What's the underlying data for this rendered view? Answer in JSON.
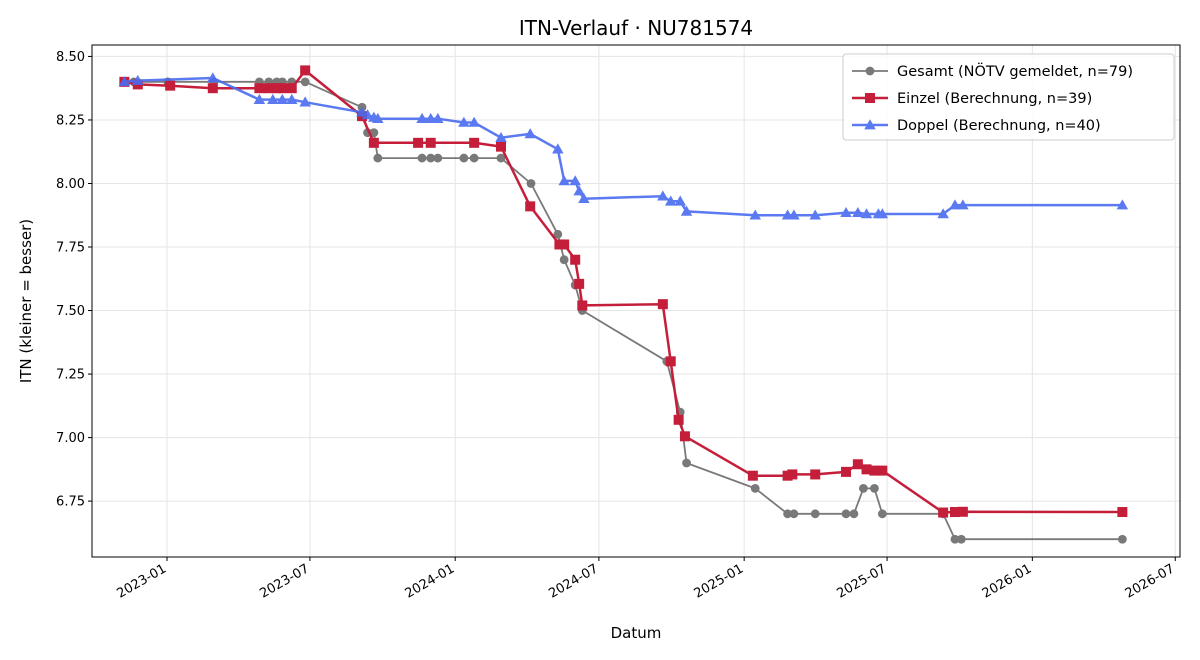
{
  "chart_data": {
    "type": "line",
    "title": "ITN-Verlauf · NU781574",
    "xlabel": "Datum",
    "ylabel": "ITN  (kleiner = besser)",
    "x_range": [
      "2022-09-28",
      "2026-07-07"
    ],
    "ylim": [
      6.53,
      8.545
    ],
    "x_ticks": [
      {
        "date": "2023-01-01",
        "label": "2023-01"
      },
      {
        "date": "2023-07-01",
        "label": "2023-07"
      },
      {
        "date": "2024-01-01",
        "label": "2024-01"
      },
      {
        "date": "2024-07-01",
        "label": "2024-07"
      },
      {
        "date": "2025-01-01",
        "label": "2025-01"
      },
      {
        "date": "2025-07-01",
        "label": "2025-07"
      },
      {
        "date": "2026-01-01",
        "label": "2026-01"
      },
      {
        "date": "2026-07-01",
        "label": "2026-07"
      }
    ],
    "y_ticks": [
      {
        "value": 6.75,
        "label": "6.75"
      },
      {
        "value": 7.0,
        "label": "7.00"
      },
      {
        "value": 7.25,
        "label": "7.25"
      },
      {
        "value": 7.5,
        "label": "7.50"
      },
      {
        "value": 7.75,
        "label": "7.75"
      },
      {
        "value": 8.0,
        "label": "8.00"
      },
      {
        "value": 8.25,
        "label": "8.25"
      },
      {
        "value": 8.5,
        "label": "8.50"
      }
    ],
    "grid": true,
    "legend_position": "top-right",
    "series": [
      {
        "name": "Gesamt (NÖTV gemeldet, n=79)",
        "color": "#4d4d4d",
        "marker": "circle",
        "points": [
          [
            "2022-11-08",
            8.4
          ],
          [
            "2022-11-20",
            8.4
          ],
          [
            "2023-01-02",
            8.4
          ],
          [
            "2023-03-01",
            8.4
          ],
          [
            "2023-04-28",
            8.4
          ],
          [
            "2023-05-10",
            8.4
          ],
          [
            "2023-05-20",
            8.4
          ],
          [
            "2023-05-27",
            8.4
          ],
          [
            "2023-06-08",
            8.4
          ],
          [
            "2023-06-25",
            8.4
          ],
          [
            "2023-09-05",
            8.3
          ],
          [
            "2023-09-12",
            8.2
          ],
          [
            "2023-09-20",
            8.2
          ],
          [
            "2023-09-25",
            8.1
          ],
          [
            "2023-11-20",
            8.1
          ],
          [
            "2023-12-01",
            8.1
          ],
          [
            "2023-12-10",
            8.1
          ],
          [
            "2024-01-12",
            8.1
          ],
          [
            "2024-01-25",
            8.1
          ],
          [
            "2024-02-28",
            8.1
          ],
          [
            "2024-04-06",
            8.0
          ],
          [
            "2024-05-10",
            7.8
          ],
          [
            "2024-05-18",
            7.7
          ],
          [
            "2024-06-01",
            7.6
          ],
          [
            "2024-06-10",
            7.5
          ],
          [
            "2024-09-25",
            7.3
          ],
          [
            "2024-10-12",
            7.1
          ],
          [
            "2024-10-20",
            6.9
          ],
          [
            "2025-01-15",
            6.8
          ],
          [
            "2025-02-25",
            6.7
          ],
          [
            "2025-03-05",
            6.7
          ],
          [
            "2025-04-01",
            6.7
          ],
          [
            "2025-05-10",
            6.7
          ],
          [
            "2025-05-20",
            6.7
          ],
          [
            "2025-06-01",
            6.8
          ],
          [
            "2025-06-15",
            6.8
          ],
          [
            "2025-06-25",
            6.7
          ],
          [
            "2025-09-10",
            6.7
          ],
          [
            "2025-09-25",
            6.6
          ],
          [
            "2025-10-03",
            6.6
          ],
          [
            "2026-04-25",
            6.6
          ]
        ]
      },
      {
        "name": "Einzel (Berechnung, n=39)",
        "color": "#c41e3a",
        "marker": "square",
        "points": [
          [
            "2022-11-08",
            8.4
          ],
          [
            "2022-11-25",
            8.39
          ],
          [
            "2023-01-05",
            8.385
          ],
          [
            "2023-02-28",
            8.375
          ],
          [
            "2023-04-28",
            8.375
          ],
          [
            "2023-05-10",
            8.375
          ],
          [
            "2023-05-20",
            8.375
          ],
          [
            "2023-05-27",
            8.375
          ],
          [
            "2023-06-08",
            8.375
          ],
          [
            "2023-06-25",
            8.445
          ],
          [
            "2023-09-05",
            8.265
          ],
          [
            "2023-09-20",
            8.16
          ],
          [
            "2023-11-15",
            8.16
          ],
          [
            "2023-12-01",
            8.16
          ],
          [
            "2024-01-25",
            8.16
          ],
          [
            "2024-02-28",
            8.145
          ],
          [
            "2024-04-05",
            7.91
          ],
          [
            "2024-05-12",
            7.76
          ],
          [
            "2024-05-18",
            7.76
          ],
          [
            "2024-06-01",
            7.7
          ],
          [
            "2024-06-06",
            7.605
          ],
          [
            "2024-06-10",
            7.52
          ],
          [
            "2024-09-20",
            7.525
          ],
          [
            "2024-09-30",
            7.3
          ],
          [
            "2024-10-10",
            7.07
          ],
          [
            "2024-10-18",
            7.005
          ],
          [
            "2025-01-12",
            6.85
          ],
          [
            "2025-02-25",
            6.85
          ],
          [
            "2025-03-03",
            6.855
          ],
          [
            "2025-04-01",
            6.855
          ],
          [
            "2025-05-10",
            6.865
          ],
          [
            "2025-05-25",
            6.895
          ],
          [
            "2025-06-05",
            6.875
          ],
          [
            "2025-06-15",
            6.87
          ],
          [
            "2025-06-25",
            6.87
          ],
          [
            "2025-09-10",
            6.705
          ],
          [
            "2025-09-25",
            6.707
          ],
          [
            "2025-10-05",
            6.708
          ],
          [
            "2026-04-25",
            6.707
          ]
        ]
      },
      {
        "name": "Doppel (Berechnung, n=40)",
        "color": "#4a6cf0",
        "marker": "triangle",
        "points": [
          [
            "2022-11-08",
            8.4
          ],
          [
            "2022-11-25",
            8.405
          ],
          [
            "2023-02-28",
            8.415
          ],
          [
            "2023-04-28",
            8.33
          ],
          [
            "2023-05-15",
            8.33
          ],
          [
            "2023-05-27",
            8.33
          ],
          [
            "2023-06-08",
            8.33
          ],
          [
            "2023-06-25",
            8.32
          ],
          [
            "2023-09-05",
            8.28
          ],
          [
            "2023-09-12",
            8.27
          ],
          [
            "2023-09-20",
            8.26
          ],
          [
            "2023-09-25",
            8.255
          ],
          [
            "2023-11-20",
            8.255
          ],
          [
            "2023-12-01",
            8.255
          ],
          [
            "2023-12-10",
            8.255
          ],
          [
            "2024-01-12",
            8.24
          ],
          [
            "2024-01-25",
            8.24
          ],
          [
            "2024-02-28",
            8.18
          ],
          [
            "2024-04-05",
            8.195
          ],
          [
            "2024-05-10",
            8.135
          ],
          [
            "2024-05-18",
            8.01
          ],
          [
            "2024-06-01",
            8.01
          ],
          [
            "2024-06-06",
            7.97
          ],
          [
            "2024-06-12",
            7.94
          ],
          [
            "2024-09-20",
            7.95
          ],
          [
            "2024-09-30",
            7.93
          ],
          [
            "2024-10-12",
            7.93
          ],
          [
            "2024-10-20",
            7.89
          ],
          [
            "2025-01-15",
            7.875
          ],
          [
            "2025-02-25",
            7.875
          ],
          [
            "2025-03-05",
            7.875
          ],
          [
            "2025-04-01",
            7.875
          ],
          [
            "2025-05-10",
            7.885
          ],
          [
            "2025-05-25",
            7.885
          ],
          [
            "2025-06-05",
            7.88
          ],
          [
            "2025-06-20",
            7.88
          ],
          [
            "2025-06-25",
            7.88
          ],
          [
            "2025-09-10",
            7.88
          ],
          [
            "2025-09-25",
            7.915
          ],
          [
            "2025-10-05",
            7.915
          ],
          [
            "2026-04-25",
            7.915
          ]
        ]
      }
    ]
  }
}
